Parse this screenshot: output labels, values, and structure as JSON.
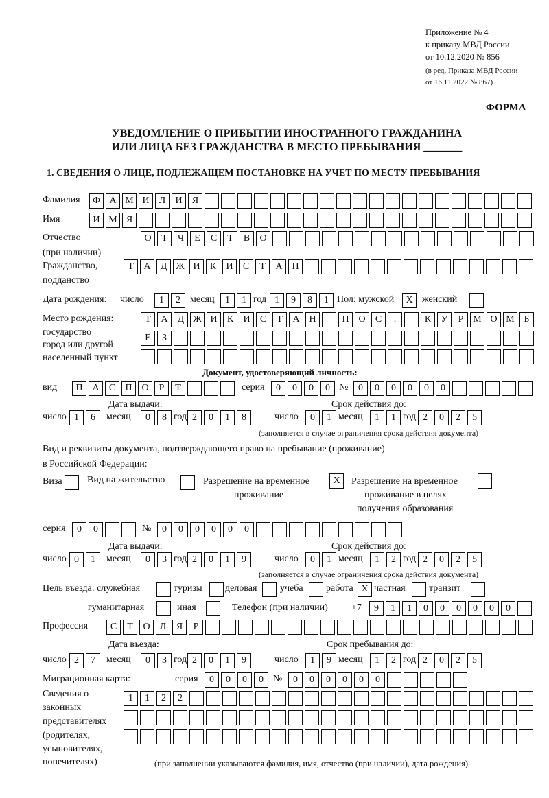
{
  "header": {
    "line1": "Приложение № 4",
    "line2": "к приказу МВД России",
    "line3": "от 10.12.2020 № 856",
    "line4": "(в ред. Приказа МВД России",
    "line5": "от 16.11.2022 № 867)",
    "form": "ФОРМА"
  },
  "title": {
    "line1": "УВЕДОМЛЕНИЕ О ПРИБЫТИИ ИНОСТРАННОГО ГРАЖДАНИНА",
    "line2": "ИЛИ ЛИЦА БЕЗ ГРАЖДАНСТВА В МЕСТО ПРЕБЫВАНИЯ _______"
  },
  "section1": "1. СВЕДЕНИЯ О ЛИЦЕ, ПОДЛЕЖАЩЕМ ПОСТАНОВКЕ НА УЧЕТ ПО МЕСТУ ПРЕБЫВАНИЯ",
  "labels": {
    "surname": "Фамилия",
    "name": "Имя",
    "patronymic": "Отчество",
    "patronymic2": "(при наличии)",
    "citizenship": "Гражданство,",
    "citizenship2": "подданство",
    "birth_date": "Дата рождения:",
    "day": "число",
    "month": "месяц",
    "year": "год",
    "sex": "Пол: мужской",
    "female": "женский",
    "birth_place1": "Место рождения:",
    "birth_place2": "государство",
    "birth_place3": "город или другой",
    "birth_place4": "населенный пункт",
    "id_doc": "Документ, удостоверяющий личность:",
    "kind": "вид",
    "series": "серия",
    "number": "№",
    "issue_date": "Дата выдачи:",
    "valid_until": "Срок действия до:",
    "valid_note": "(заполняется в случае ограничения срока действия документа)",
    "right_doc1": "Вид и реквизиты документа, подтверждающего право на пребывание (проживание)",
    "right_doc2": "в Российской Федерации:",
    "visa": "Виза",
    "residence": "Вид на жительство",
    "trp1": "Разрешение на временное",
    "trp2": "проживание",
    "trpe1": "Разрешение на временное",
    "trpe2": "проживание в целях",
    "trpe3": "получения образования",
    "purpose": "Цель въезда: служебная",
    "tourism": "туризм",
    "business": "деловая",
    "study": "учеба",
    "work": "работа",
    "private": "частная",
    "transit": "транзит",
    "humanitarian": "гуманитарная",
    "other": "иная",
    "phone": "Телефон (при наличии)",
    "phone_prefix": "+7",
    "profession": "Профессия",
    "entry_date": "Дата въезда:",
    "stay_until": "Срок пребывания до:",
    "migration_card": "Миграционная карта:",
    "reps1": "Сведения о",
    "reps2": "законных",
    "reps3": "представителях",
    "reps4": "(родителях,",
    "reps5": "усыновителях,",
    "reps6": "попечителях)",
    "reps_note": "(при заполнении указываются фамилия, имя, отчество (при наличии), дата рождения)"
  },
  "person": {
    "surname": "ФАМИЛИЯ",
    "name": "ИМЯ",
    "patronymic": "ОТЧЕСТВО",
    "citizenship": "ТАДЖИКИСТАН",
    "birth_day": "12",
    "birth_month": "11",
    "birth_year": "1981",
    "male": "X",
    "female": "",
    "birth_place_1": "ТАДЖИКИСТАН ПОС. КУРМОМБ",
    "birth_place_2": "ЕЗ",
    "birth_place_3": ""
  },
  "id_document": {
    "kind": "ПАСПОРТ",
    "series": "0000",
    "number": "000000",
    "issue_day": "16",
    "issue_month": "08",
    "issue_year": "2018",
    "valid_day": "01",
    "valid_month": "11",
    "valid_year": "2025"
  },
  "right_document": {
    "visa": "",
    "residence": "",
    "trp": "X",
    "trp_education": "",
    "series": "00",
    "number": "000000",
    "issue_day": "01",
    "issue_month": "03",
    "issue_year": "2019",
    "valid_day": "01",
    "valid_month": "12",
    "valid_year": "2025"
  },
  "purpose": {
    "official": "",
    "tourism": "",
    "business": "",
    "study": "",
    "work": "X",
    "private": "",
    "transit": "",
    "humanitarian": "",
    "other": ""
  },
  "phone": "911000000",
  "profession": "СТОЛЯР",
  "entry": {
    "day": "27",
    "month": "03",
    "year": "2019",
    "stay_day": "19",
    "stay_month": "12",
    "stay_year": "2025"
  },
  "migration_card": {
    "series": "0000",
    "number": "000000"
  },
  "representatives": {
    "line1": "1122",
    "line2": "",
    "line3": ""
  }
}
